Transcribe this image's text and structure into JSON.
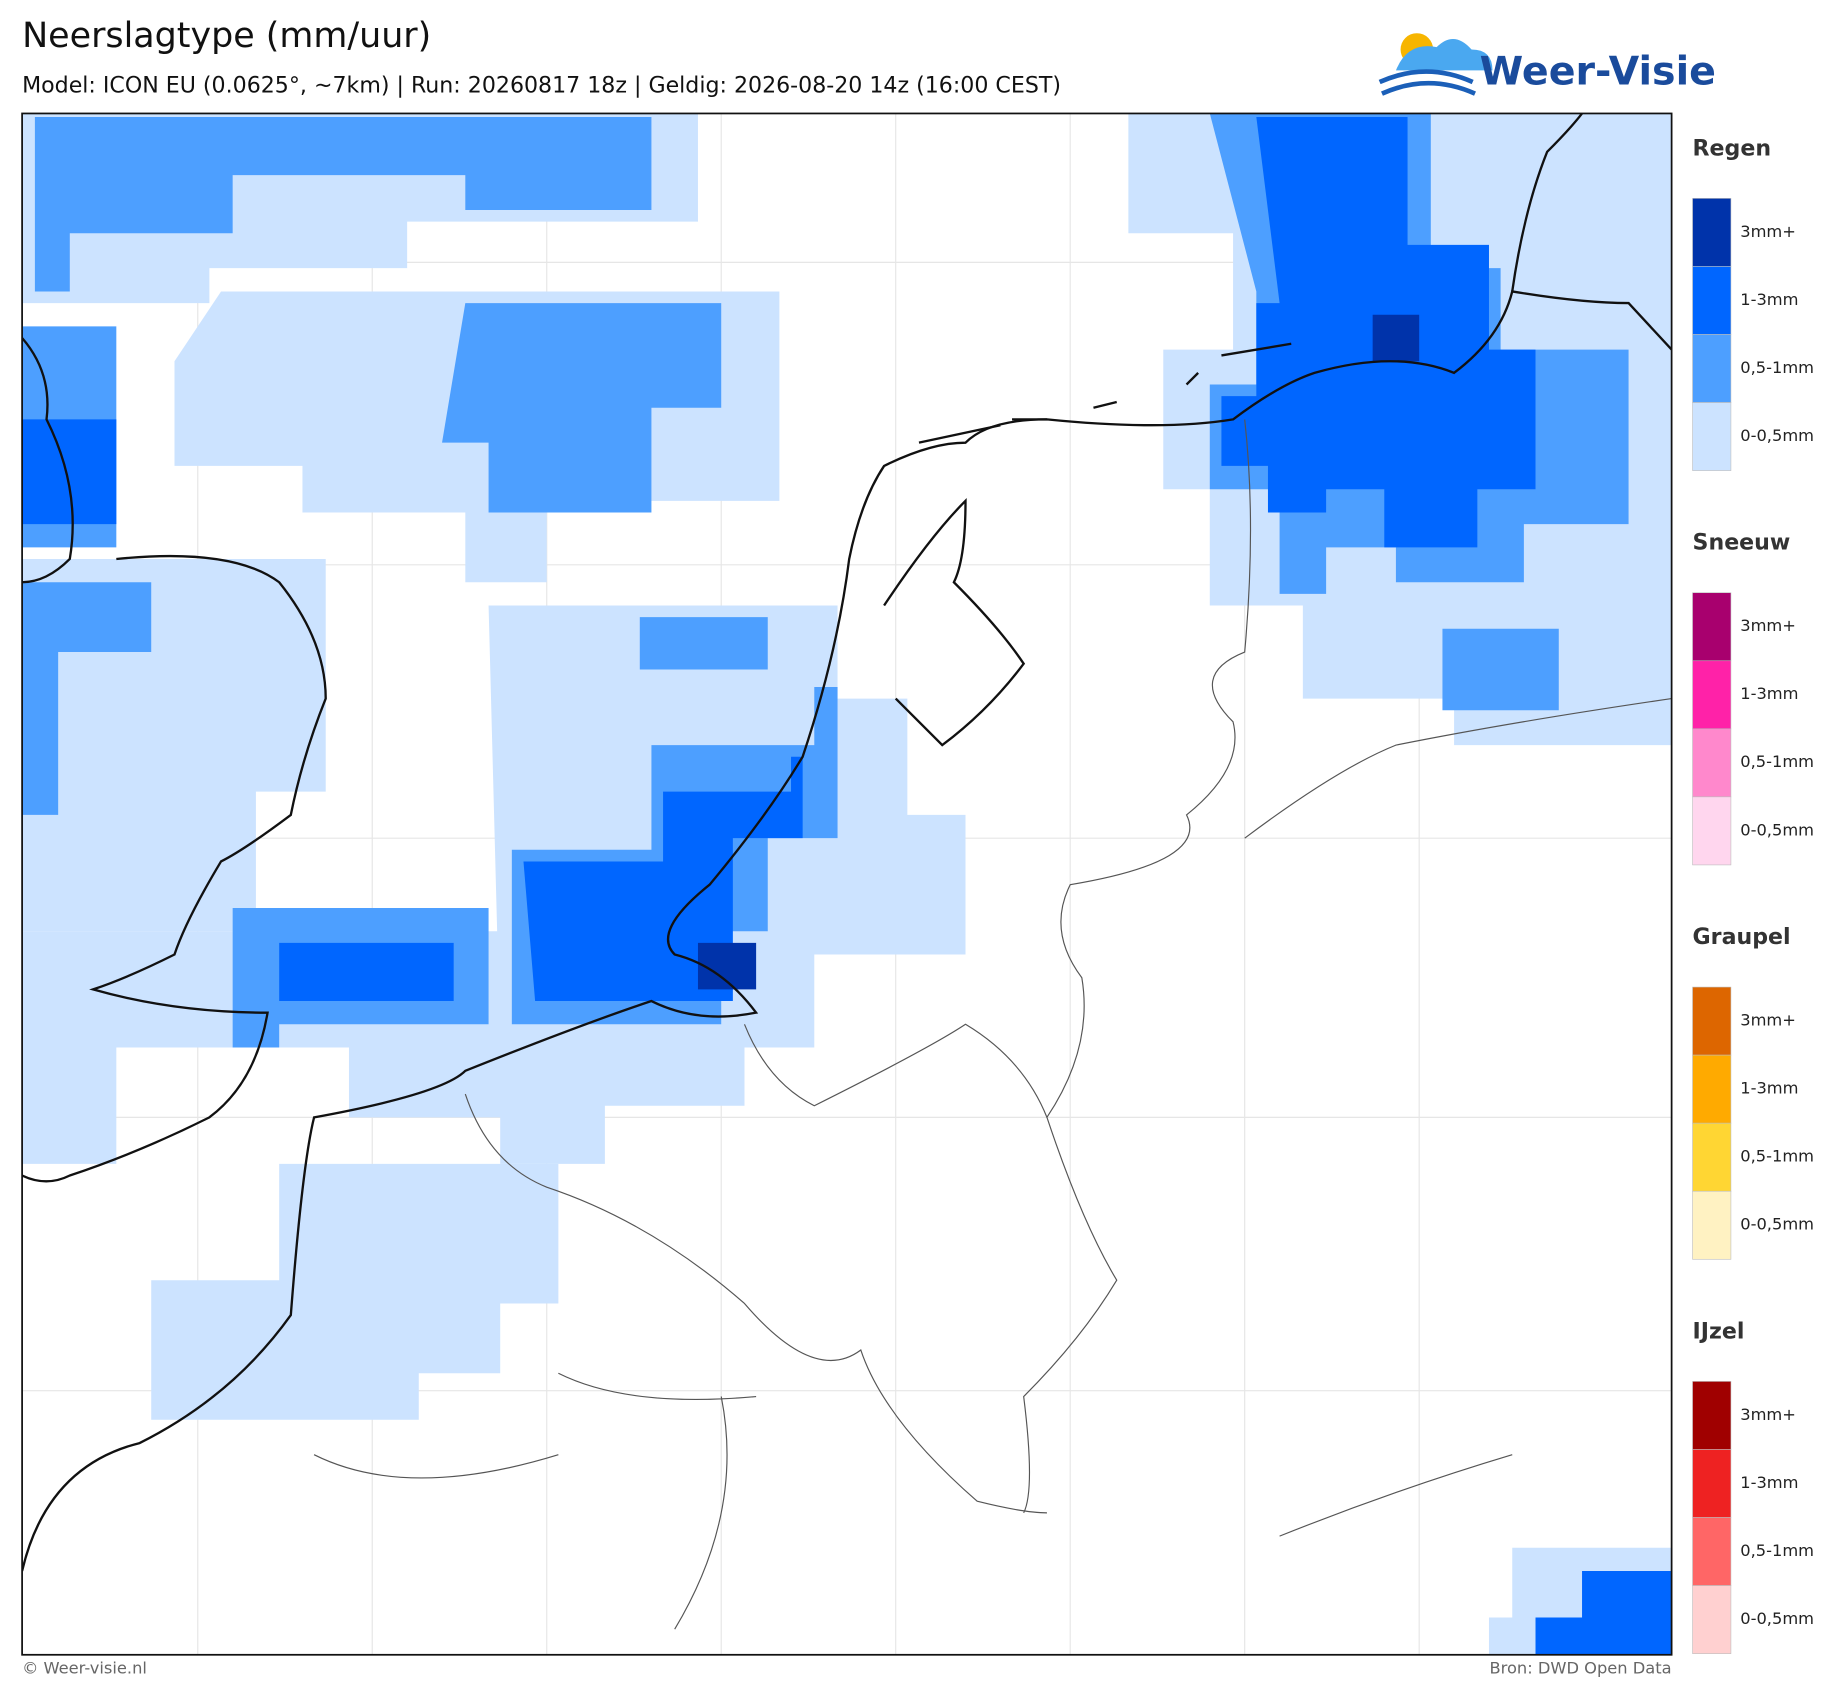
{
  "header": {
    "title": "Neerslagtype (mm/uur)",
    "subtitle": "Model: ICON EU (0.0625°, ~7km)  |  Run: 20260817 18z  |  Geldig: 2026-08-20 14z (16:00 CEST)"
  },
  "logo": {
    "text": "Weer-Visie"
  },
  "legend": {
    "groups": [
      {
        "title": "Regen",
        "items": [
          {
            "label": "3mm+",
            "color": "#0033aa"
          },
          {
            "label": "1-3mm",
            "color": "#0066ff"
          },
          {
            "label": "0,5-1mm",
            "color": "#4d9fff"
          },
          {
            "label": "0-0,5mm",
            "color": "#cce3ff"
          }
        ]
      },
      {
        "title": "Sneeuw",
        "items": [
          {
            "label": "3mm+",
            "color": "#a8006e"
          },
          {
            "label": "1-3mm",
            "color": "#ff22a8"
          },
          {
            "label": "0,5-1mm",
            "color": "#ff88cc"
          },
          {
            "label": "0-0,5mm",
            "color": "#ffd6ee"
          }
        ]
      },
      {
        "title": "Graupel",
        "items": [
          {
            "label": "3mm+",
            "color": "#dd6600"
          },
          {
            "label": "1-3mm",
            "color": "#ffaa00"
          },
          {
            "label": "0,5-1mm",
            "color": "#ffd633"
          },
          {
            "label": "0-0,5mm",
            "color": "#fff2c2"
          }
        ]
      },
      {
        "title": "IJzel",
        "items": [
          {
            "label": "3mm+",
            "color": "#a00000"
          },
          {
            "label": "1-3mm",
            "color": "#ee2222"
          },
          {
            "label": "0,5-1mm",
            "color": "#ff6666"
          },
          {
            "label": "0-0,5mm",
            "color": "#ffd0d0"
          }
        ]
      }
    ]
  },
  "footer": {
    "left": "© Weer-visie.nl",
    "right": "Bron: DWD Open Data"
  }
}
